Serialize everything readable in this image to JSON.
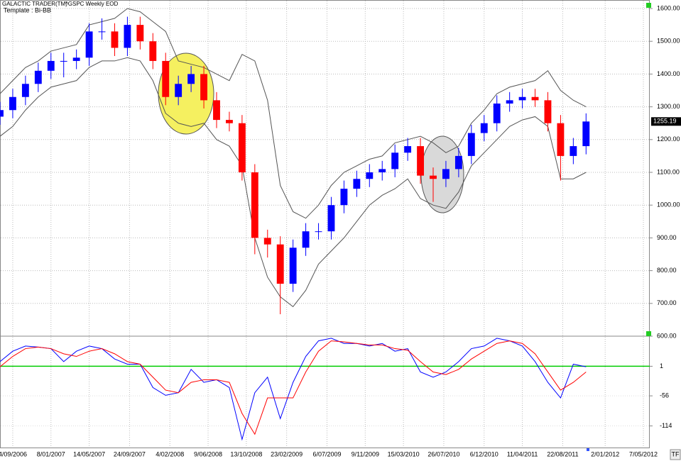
{
  "chart_data": [
    {
      "type": "ohlc",
      "title": "GALACTIC TRADER(TM)",
      "subtitle": "^GSPC Weekly EOD",
      "template": "Template : Bi-BB",
      "x": [
        -6,
        0,
        6,
        12,
        18,
        24,
        30,
        36,
        42,
        48,
        54,
        60,
        66,
        72,
        78,
        84,
        90,
        96,
        102,
        108,
        114,
        120,
        126,
        132,
        138,
        144,
        150,
        156,
        162,
        168,
        174,
        180,
        186,
        192,
        198,
        204,
        210,
        216,
        222,
        228,
        234,
        240,
        246,
        252,
        258,
        264,
        270
      ],
      "open": [
        1270,
        1290,
        1330,
        1370,
        1410,
        1440,
        1440,
        1450,
        1530,
        1530,
        1480,
        1550,
        1500,
        1440,
        1330,
        1370,
        1400,
        1320,
        1260,
        1250,
        1100,
        900,
        880,
        760,
        870,
        920,
        920,
        1000,
        1050,
        1080,
        1100,
        1110,
        1160,
        1180,
        1090,
        1080,
        1110,
        1150,
        1220,
        1250,
        1310,
        1320,
        1330,
        1320,
        1250,
        1150,
        1180
      ],
      "high": [
        1315,
        1355,
        1395,
        1435,
        1465,
        1465,
        1475,
        1555,
        1570,
        1555,
        1575,
        1575,
        1525,
        1465,
        1395,
        1425,
        1425,
        1345,
        1285,
        1275,
        1125,
        925,
        905,
        895,
        945,
        945,
        1025,
        1075,
        1105,
        1125,
        1135,
        1185,
        1205,
        1205,
        1115,
        1135,
        1175,
        1245,
        1275,
        1335,
        1345,
        1355,
        1355,
        1345,
        1275,
        1205,
        1280
      ],
      "low": [
        1245,
        1265,
        1305,
        1345,
        1385,
        1390,
        1415,
        1425,
        1505,
        1455,
        1455,
        1475,
        1415,
        1305,
        1305,
        1345,
        1295,
        1235,
        1225,
        1075,
        850,
        840,
        667,
        735,
        845,
        895,
        895,
        975,
        1025,
        1055,
        1075,
        1085,
        1135,
        1065,
        1010,
        1055,
        1085,
        1125,
        1195,
        1225,
        1285,
        1295,
        1300,
        1225,
        1075,
        1125,
        1155
      ],
      "close": [
        1290,
        1330,
        1370,
        1410,
        1440,
        1440,
        1450,
        1530,
        1530,
        1480,
        1550,
        1500,
        1440,
        1330,
        1370,
        1400,
        1320,
        1260,
        1250,
        1100,
        900,
        880,
        760,
        870,
        920,
        920,
        1000,
        1050,
        1080,
        1100,
        1110,
        1160,
        1180,
        1090,
        1080,
        1110,
        1150,
        1220,
        1250,
        1310,
        1320,
        1330,
        1320,
        1250,
        1150,
        1180,
        1255.19
      ],
      "upper_band": [
        1340,
        1380,
        1420,
        1440,
        1470,
        1480,
        1490,
        1550,
        1560,
        1570,
        1600,
        1590,
        1560,
        1530,
        1440,
        1430,
        1420,
        1400,
        1380,
        1460,
        1440,
        1320,
        1060,
        980,
        960,
        1000,
        1060,
        1100,
        1120,
        1140,
        1150,
        1190,
        1200,
        1210,
        1190,
        1160,
        1180,
        1250,
        1290,
        1340,
        1360,
        1370,
        1380,
        1410,
        1350,
        1320,
        1300
      ],
      "lower_band": [
        1210,
        1240,
        1290,
        1330,
        1360,
        1370,
        1380,
        1420,
        1440,
        1440,
        1450,
        1440,
        1380,
        1280,
        1250,
        1240,
        1250,
        1200,
        1180,
        1120,
        900,
        780,
        720,
        690,
        740,
        820,
        860,
        900,
        950,
        1000,
        1030,
        1050,
        1080,
        1020,
        1000,
        990,
        1040,
        1120,
        1160,
        1200,
        1240,
        1260,
        1270,
        1240,
        1080,
        1080,
        1100
      ],
      "up_color": "#0000ff",
      "down_color": "#ff0000",
      "band_color": "#555555",
      "xlim": [
        -6,
        300
      ],
      "xticks": [
        {
          "value": 0,
          "label": "4/09/2006"
        },
        {
          "value": 18,
          "label": "8/01/2007"
        },
        {
          "value": 36,
          "label": "14/05/2007"
        },
        {
          "value": 55,
          "label": "24/09/2007"
        },
        {
          "value": 74,
          "label": "4/02/2008"
        },
        {
          "value": 92,
          "label": "9/06/2008"
        },
        {
          "value": 110,
          "label": "13/10/2008"
        },
        {
          "value": 129,
          "label": "23/02/2009"
        },
        {
          "value": 148,
          "label": "6/07/2009"
        },
        {
          "value": 166,
          "label": "9/11/2009"
        },
        {
          "value": 184,
          "label": "15/03/2010"
        },
        {
          "value": 203,
          "label": "26/07/2010"
        },
        {
          "value": 222,
          "label": "6/12/2010"
        },
        {
          "value": 240,
          "label": "11/04/2011"
        },
        {
          "value": 259,
          "label": "22/08/2011"
        },
        {
          "value": 279,
          "label": "2/01/2012"
        },
        {
          "value": 297,
          "label": "7/05/2012"
        }
      ],
      "ylim": [
        600,
        1626
      ],
      "yticks": [
        {
          "value": 600,
          "label": "600.00"
        },
        {
          "value": 700,
          "label": "700.00"
        },
        {
          "value": 800,
          "label": "800.00"
        },
        {
          "value": 900,
          "label": "900.00"
        },
        {
          "value": 1000,
          "label": "1000.00"
        },
        {
          "value": 1100,
          "label": "1100.00"
        },
        {
          "value": 1200,
          "label": "1200.00"
        },
        {
          "value": 1300,
          "label": "1300.00"
        },
        {
          "value": 1400,
          "label": "1400.00"
        },
        {
          "value": 1500,
          "label": "1500.00"
        },
        {
          "value": 1600,
          "label": "1600.00"
        }
      ],
      "grid": true,
      "corner_button": "TF"
    },
    {
      "type": "line",
      "x": [
        -6,
        0,
        6,
        12,
        18,
        24,
        30,
        36,
        42,
        48,
        54,
        60,
        66,
        72,
        78,
        84,
        90,
        96,
        102,
        108,
        114,
        120,
        126,
        132,
        138,
        144,
        150,
        156,
        162,
        168,
        174,
        180,
        186,
        192,
        198,
        204,
        210,
        216,
        222,
        228,
        234,
        240,
        246,
        252,
        258,
        264,
        270
      ],
      "series": [
        {
          "color": "#0000ff",
          "values": [
            10,
            30,
            40,
            38,
            35,
            10,
            30,
            40,
            35,
            15,
            5,
            5,
            -40,
            -55,
            -50,
            -5,
            -30,
            -25,
            -40,
            -140,
            -50,
            -20,
            -100,
            -30,
            20,
            50,
            55,
            45,
            45,
            40,
            45,
            30,
            35,
            -10,
            -20,
            -10,
            10,
            35,
            40,
            55,
            50,
            40,
            10,
            -30,
            -60,
            5,
            0
          ]
        },
        {
          "color": "#ff0000",
          "values": [
            0,
            20,
            35,
            38,
            35,
            25,
            20,
            30,
            35,
            25,
            10,
            5,
            -20,
            -45,
            -50,
            -30,
            -25,
            -25,
            -30,
            -90,
            -130,
            -60,
            -60,
            -60,
            -10,
            30,
            50,
            48,
            45,
            42,
            42,
            35,
            32,
            10,
            -10,
            -15,
            -5,
            15,
            30,
            45,
            50,
            45,
            25,
            -10,
            -45,
            -30,
            -10
          ]
        }
      ],
      "ylim": [
        -157,
        59
      ],
      "yticks": [
        1,
        -56,
        -114
      ],
      "hline": 1,
      "hline_color": "#00cc00"
    }
  ]
}
